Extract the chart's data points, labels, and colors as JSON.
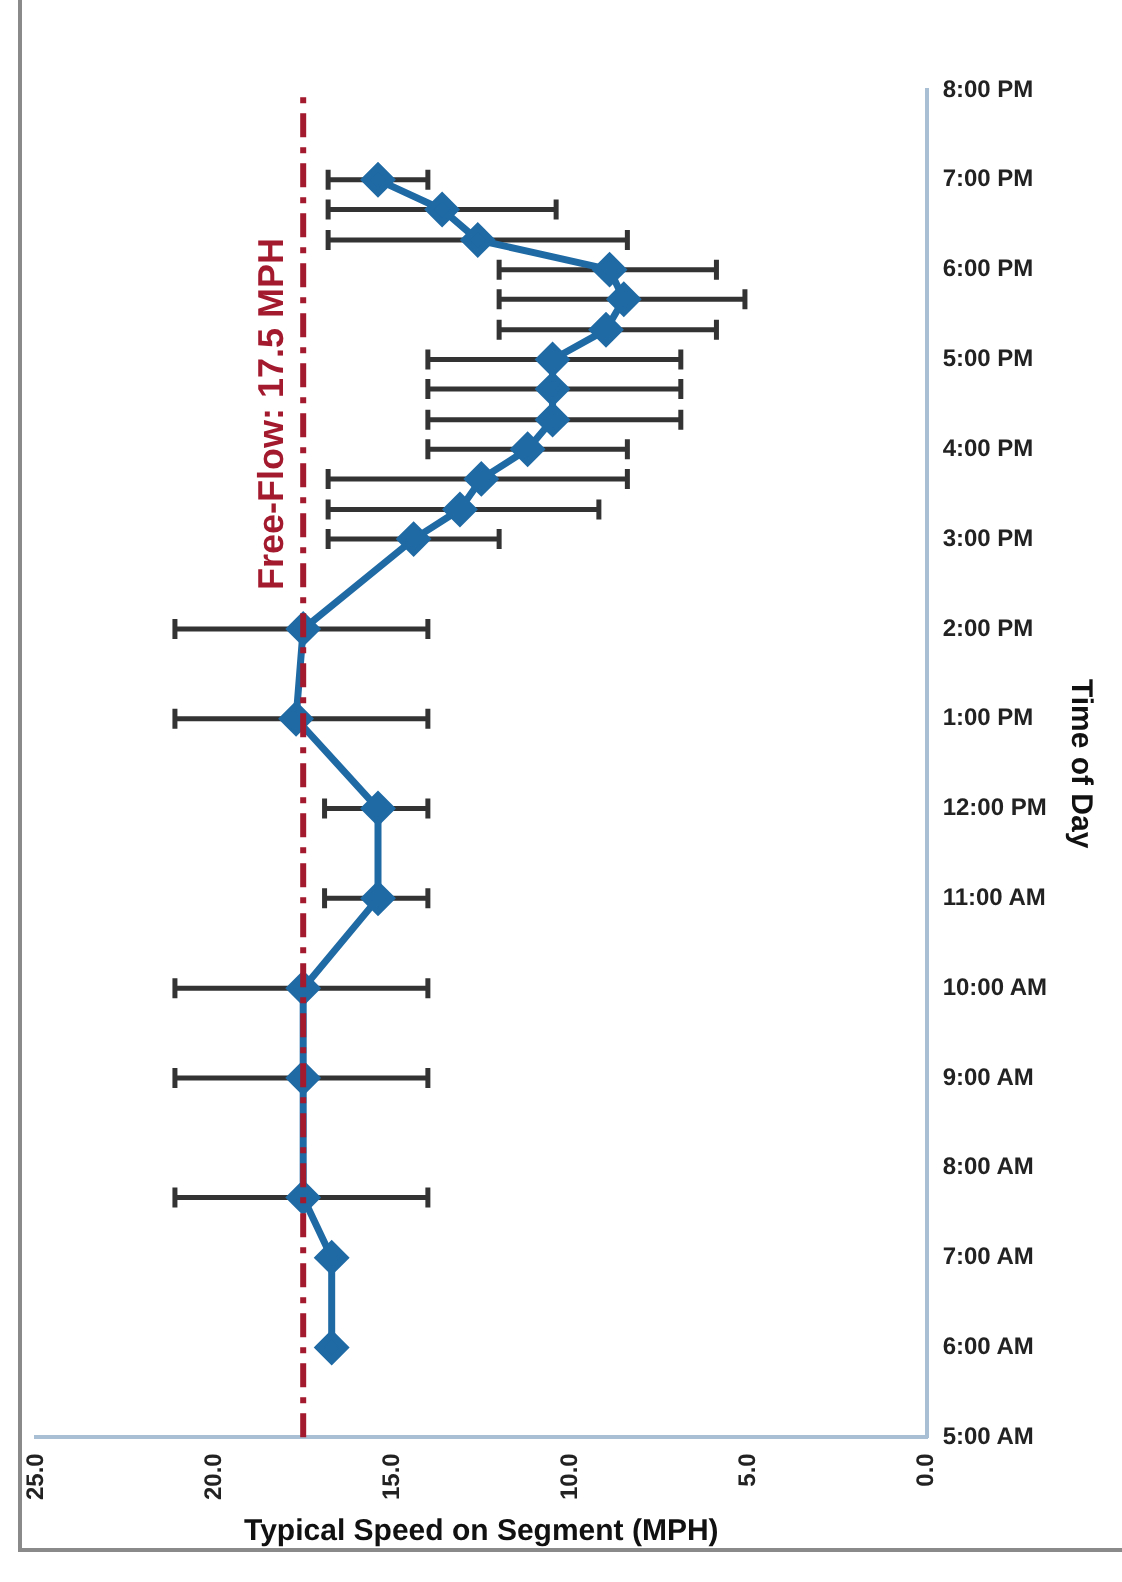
{
  "chart_data": {
    "type": "line",
    "orientation": "horizontal",
    "xlabel": "Typical Speed on Segment (MPH)",
    "ylabel": "Time of Day",
    "x": [
      6,
      7,
      7.67,
      9,
      10,
      11,
      12,
      13,
      14,
      15,
      15.33,
      15.67,
      16,
      16.33,
      16.67,
      17,
      17.33,
      17.67,
      18,
      18.33,
      18.67,
      19
    ],
    "series": [
      {
        "color": "#1f6aa5",
        "values": [
          16.7,
          16.7,
          17.5,
          17.5,
          17.5,
          15.4,
          15.4,
          17.7,
          17.5,
          14.4,
          13.1,
          12.5,
          11.2,
          10.5,
          10.5,
          10.5,
          9.0,
          8.5,
          8.9,
          12.6,
          13.6,
          15.4
        ],
        "errors": [
          null,
          null,
          [
            14.0,
            21.1
          ],
          [
            14.0,
            21.1
          ],
          [
            14.0,
            21.1
          ],
          [
            14.0,
            16.9
          ],
          [
            14.0,
            16.9
          ],
          [
            14.0,
            21.1
          ],
          [
            14.0,
            21.1
          ],
          [
            12.0,
            16.8
          ],
          [
            9.2,
            16.8
          ],
          [
            8.4,
            16.8
          ],
          [
            8.4,
            14.0
          ],
          [
            6.9,
            14.0
          ],
          [
            6.9,
            14.0
          ],
          [
            6.9,
            14.0
          ],
          [
            5.9,
            12.0
          ],
          [
            5.1,
            12.0
          ],
          [
            5.9,
            12.0
          ],
          [
            8.4,
            16.8
          ],
          [
            10.4,
            16.8
          ],
          [
            14.0,
            16.8
          ]
        ]
      }
    ],
    "marker": "diamond",
    "line_style": "solid",
    "grid": false,
    "legend": false,
    "xlim": [
      25,
      0
    ],
    "xticks": [
      {
        "value": 25,
        "label": "25.0"
      },
      {
        "value": 20,
        "label": "20.0"
      },
      {
        "value": 15,
        "label": "15.0"
      },
      {
        "value": 10,
        "label": "10.0"
      },
      {
        "value": 5,
        "label": "5.0"
      },
      {
        "value": 0,
        "label": "0.0"
      }
    ],
    "ylim": [
      5,
      20
    ],
    "yticks": [
      {
        "value": 5,
        "label": "5:00 AM"
      },
      {
        "value": 6,
        "label": "6:00 AM"
      },
      {
        "value": 7,
        "label": "7:00 AM"
      },
      {
        "value": 8,
        "label": "8:00 AM"
      },
      {
        "value": 9,
        "label": "9:00 AM"
      },
      {
        "value": 10,
        "label": "10:00 AM"
      },
      {
        "value": 11,
        "label": "11:00 AM"
      },
      {
        "value": 12,
        "label": "12:00 PM"
      },
      {
        "value": 13,
        "label": "1:00 PM"
      },
      {
        "value": 14,
        "label": "2:00 PM"
      },
      {
        "value": 15,
        "label": "3:00 PM"
      },
      {
        "value": 16,
        "label": "4:00 PM"
      },
      {
        "value": 17,
        "label": "5:00 PM"
      },
      {
        "value": 18,
        "label": "6:00 PM"
      },
      {
        "value": 19,
        "label": "7:00 PM"
      },
      {
        "value": 20,
        "label": "8:00 PM"
      }
    ],
    "ref_lines": [
      {
        "axis": "x",
        "value": 17.5,
        "label": "Free-Flow: 17.5 MPH",
        "color": "#a3192d",
        "line_style": "dashed"
      }
    ]
  }
}
